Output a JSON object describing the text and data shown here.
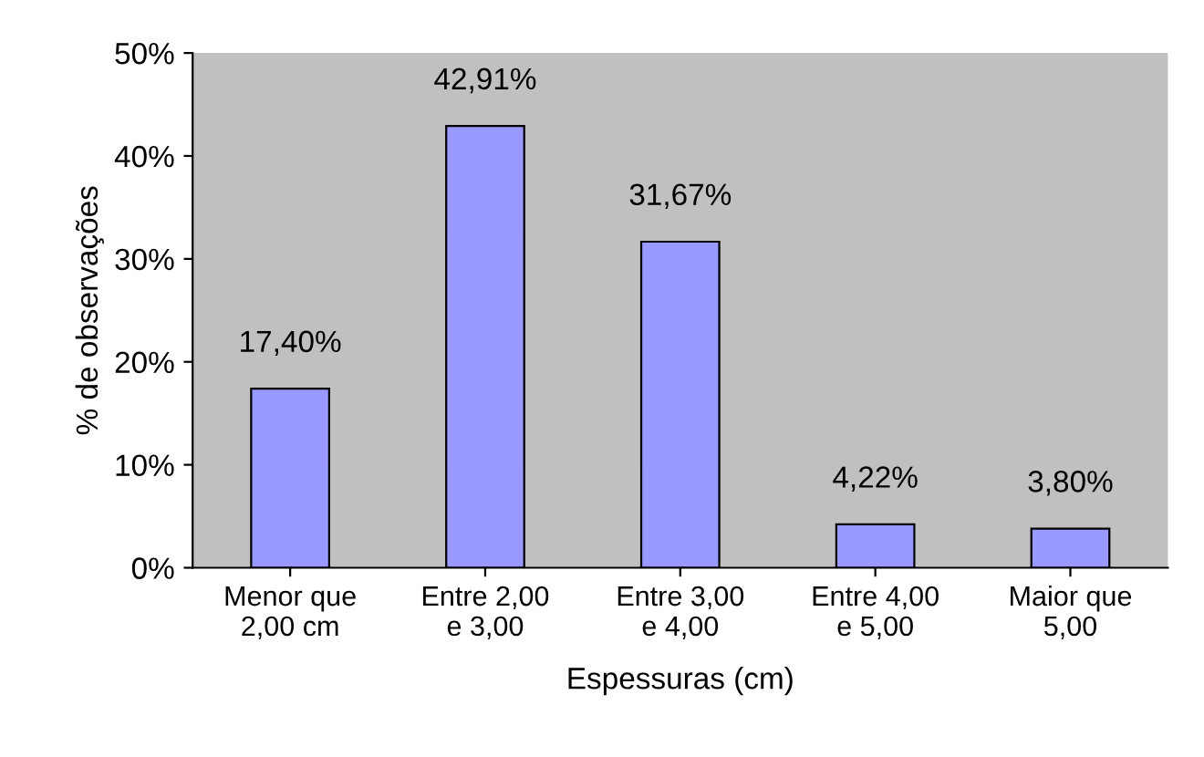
{
  "chart_data": {
    "type": "bar",
    "xlabel": "Espessuras (cm)",
    "ylabel": "% de observações",
    "categories": [
      "Menor que\n2,00 cm",
      "Entre 2,00\ne 3,00",
      "Entre 3,00\ne 4,00",
      "Entre 4,00\ne 5,00",
      "Maior que\n5,00"
    ],
    "values": [
      17.4,
      42.91,
      31.67,
      4.22,
      3.8
    ],
    "value_labels": [
      "17,40%",
      "42,91%",
      "31,67%",
      "4,22%",
      "3,80%"
    ],
    "color": "#9999ff",
    "ylim": [
      0,
      50
    ],
    "yticks": [
      {
        "value": 0,
        "label": "0%"
      },
      {
        "value": 10,
        "label": "10%"
      },
      {
        "value": 20,
        "label": "20%"
      },
      {
        "value": 30,
        "label": "30%"
      },
      {
        "value": 40,
        "label": "40%"
      },
      {
        "value": 50,
        "label": "50%"
      }
    ],
    "grid": false
  }
}
